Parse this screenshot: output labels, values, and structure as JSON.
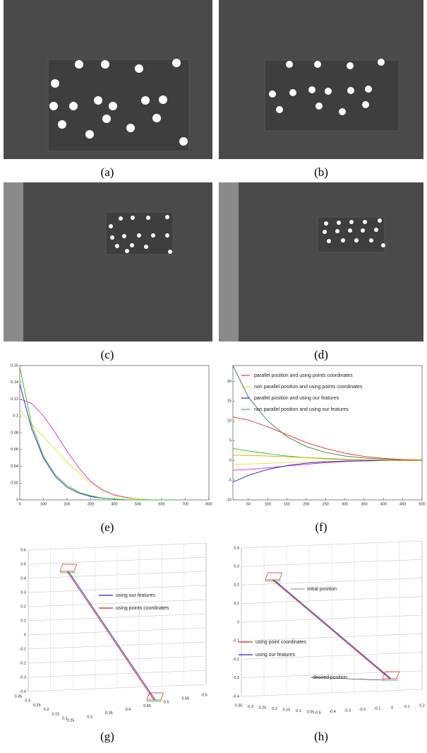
{
  "captions": [
    "(a)",
    "(b)",
    "(c)",
    "(d)",
    "(e)",
    "(f)",
    "(g)",
    "(h)"
  ],
  "chart_data": [
    {
      "type": "line",
      "x": [
        0,
        50,
        100,
        150,
        200,
        250,
        300,
        350,
        400,
        450,
        500,
        550,
        600,
        650
      ],
      "xlim": [
        0,
        800
      ],
      "xticks": [
        0,
        100,
        200,
        300,
        400,
        500,
        600,
        700,
        800
      ],
      "ylim": [
        0,
        0.16
      ],
      "yticks": [
        0,
        0.02,
        0.04,
        0.06,
        0.08,
        0.1,
        0.12,
        0.14,
        0.16
      ],
      "series": [
        {
          "color": "#e020e0",
          "values": [
            0.12,
            0.115,
            0.1,
            0.08,
            0.058,
            0.038,
            0.022,
            0.012,
            0.006,
            0.003,
            0.001,
            0,
            0,
            0
          ]
        },
        {
          "color": "#e8e020",
          "values": [
            0.107,
            0.09,
            0.075,
            0.06,
            0.045,
            0.032,
            0.02,
            0.011,
            0.005,
            0.002,
            0.001,
            0,
            0,
            0
          ]
        },
        {
          "color": "#2020d0",
          "values": [
            0.138,
            0.085,
            0.05,
            0.028,
            0.015,
            0.008,
            0.004,
            0.002,
            0.001,
            0,
            0,
            0,
            0,
            0
          ]
        },
        {
          "color": "#20c020",
          "values": [
            0.158,
            0.09,
            0.052,
            0.03,
            0.017,
            0.009,
            0.005,
            0.002,
            0.001,
            0,
            0,
            0,
            0,
            0
          ]
        }
      ]
    },
    {
      "type": "line",
      "x": [
        10,
        50,
        100,
        150,
        200,
        250,
        300,
        350,
        400,
        450,
        500
      ],
      "xlim": [
        10,
        500
      ],
      "xticks": [
        50,
        100,
        150,
        200,
        250,
        300,
        350,
        400,
        450,
        500
      ],
      "ylim": [
        -10,
        24
      ],
      "yticks": [
        -10,
        -5,
        0,
        5,
        10,
        15,
        20
      ],
      "series": [
        {
          "name": "parallel position and using points coordinates",
          "color": "#e020e0",
          "values": [
            -2.5,
            -2.3,
            -1.9,
            -1.4,
            -1,
            -0.6,
            -0.3,
            -0.15,
            -0.05,
            0,
            0
          ]
        },
        {
          "name": "non parallel position and using points coordinates",
          "color": "#e8e020",
          "values": [
            -1,
            -0.9,
            -0.75,
            -0.55,
            -0.4,
            -0.25,
            -0.15,
            -0.08,
            -0.03,
            0,
            0
          ]
        },
        {
          "name": "parallel position and using our features",
          "color": "#2020d0",
          "values": [
            -5.5,
            -3.8,
            -2.3,
            -1.3,
            -0.7,
            -0.4,
            -0.2,
            -0.1,
            0,
            0,
            0
          ]
        },
        {
          "name": "non parallel position and using our features",
          "color": "#20c020",
          "values": [
            3,
            2.4,
            1.7,
            1.1,
            0.7,
            0.4,
            0.2,
            0.1,
            0.05,
            0,
            0
          ]
        },
        {
          "color": "#2a7a5a",
          "values": [
            24,
            16,
            10,
            6,
            3.5,
            2,
            1.1,
            0.6,
            0.3,
            0.15,
            0.05
          ]
        },
        {
          "color": "#e03020",
          "values": [
            11,
            10.2,
            8.5,
            6.5,
            4.5,
            3,
            1.8,
            1,
            0.5,
            0.2,
            0.1
          ]
        },
        {
          "color": "#f0a000",
          "values": [
            1.3,
            1.25,
            1.1,
            0.9,
            0.7,
            0.5,
            0.3,
            0.15,
            0.05,
            0,
            0
          ]
        }
      ]
    }
  ],
  "plots3d": [
    {
      "z_ticks": [
        0.6,
        0.5,
        0.4,
        0.3,
        0.2,
        0.1,
        0,
        -0.1,
        -0.2,
        -0.3,
        -0.4
      ],
      "x_ticks": [
        0.35,
        0.3,
        0.25,
        0.2,
        0.15,
        0.1
      ],
      "y_ticks": [
        0.25,
        0.3,
        0.35,
        0.4,
        0.45,
        0.5,
        0.55,
        0.6
      ],
      "legend": [
        "using our features",
        "using points coordinates"
      ],
      "annotations": []
    },
    {
      "z_ticks": [
        0.4,
        0.3,
        0.2,
        0.1,
        0,
        -0.1,
        -0.2,
        -0.3,
        -0.4
      ],
      "x_ticks": [
        0.35,
        0.3,
        0.25,
        0.2,
        0.15,
        0.1,
        0.05
      ],
      "y_ticks": [
        -0.5,
        -0.4,
        -0.3,
        -0.2,
        -0.1,
        0,
        0.1,
        0.2
      ],
      "legend": [
        "using point coordinates",
        "using our features"
      ],
      "annotations": [
        "initial position",
        "desired position"
      ]
    }
  ]
}
